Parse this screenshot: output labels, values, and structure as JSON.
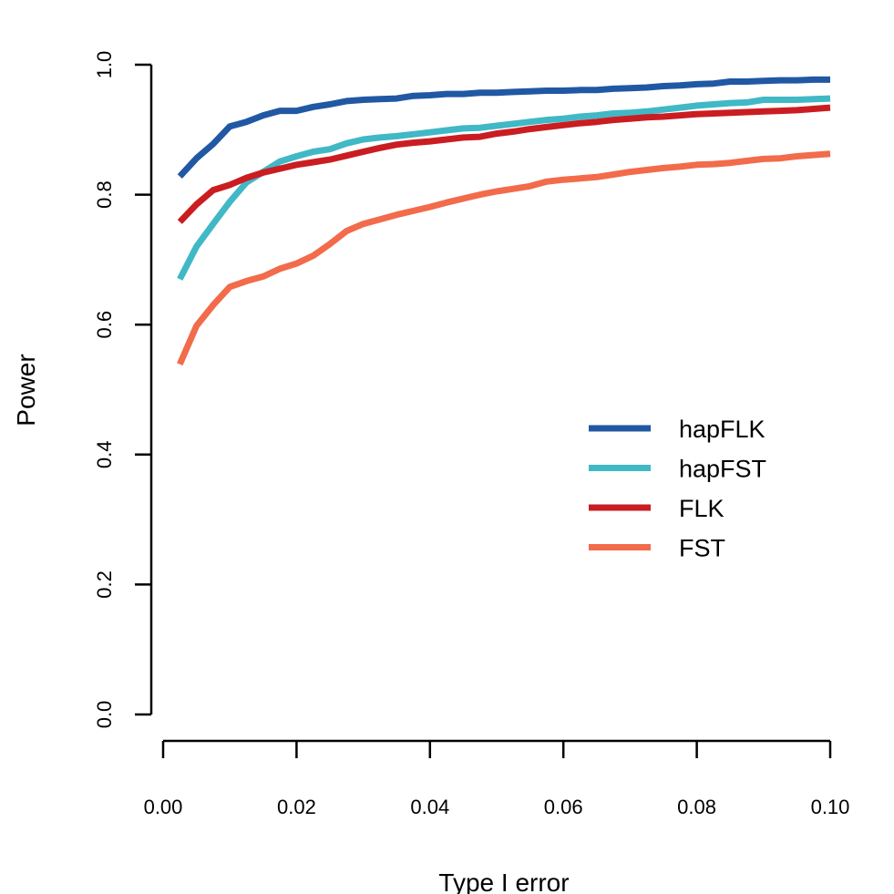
{
  "chart_data": {
    "type": "line",
    "title": "",
    "xlabel": "Type I error",
    "ylabel": "Power",
    "xlim": [
      0,
      0.1
    ],
    "ylim": [
      0,
      1
    ],
    "x_ticks": [
      "0.00",
      "0.02",
      "0.04",
      "0.06",
      "0.08",
      "0.10"
    ],
    "y_ticks": [
      "0.0",
      "0.2",
      "0.4",
      "0.6",
      "0.8",
      "1.0"
    ],
    "x_tick_values": [
      0,
      0.02,
      0.04,
      0.06,
      0.08,
      0.1
    ],
    "y_tick_values": [
      0,
      0.2,
      0.4,
      0.6,
      0.8,
      1.0
    ],
    "grid": false,
    "legend_position": "right-middle",
    "x": [
      0.0025,
      0.005,
      0.0075,
      0.01,
      0.0125,
      0.015,
      0.0175,
      0.02,
      0.0225,
      0.025,
      0.0275,
      0.03,
      0.0325,
      0.035,
      0.0375,
      0.04,
      0.0425,
      0.045,
      0.0475,
      0.05,
      0.0525,
      0.055,
      0.0575,
      0.06,
      0.0625,
      0.065,
      0.0675,
      0.07,
      0.0725,
      0.075,
      0.0775,
      0.08,
      0.0825,
      0.085,
      0.0875,
      0.09,
      0.0925,
      0.095,
      0.0975,
      0.1
    ],
    "series": [
      {
        "name": "hapFLK",
        "color": "#2158a3",
        "values": [
          0.828,
          0.856,
          0.878,
          0.905,
          0.912,
          0.922,
          0.929,
          0.929,
          0.935,
          0.939,
          0.944,
          0.946,
          0.947,
          0.948,
          0.952,
          0.953,
          0.955,
          0.955,
          0.957,
          0.957,
          0.958,
          0.959,
          0.96,
          0.96,
          0.961,
          0.961,
          0.963,
          0.964,
          0.965,
          0.967,
          0.968,
          0.97,
          0.971,
          0.974,
          0.974,
          0.975,
          0.976,
          0.976,
          0.977,
          0.977
        ]
      },
      {
        "name": "hapFST",
        "color": "#40b8c6",
        "values": [
          0.67,
          0.72,
          0.755,
          0.789,
          0.819,
          0.835,
          0.851,
          0.859,
          0.866,
          0.87,
          0.879,
          0.885,
          0.888,
          0.89,
          0.893,
          0.896,
          0.899,
          0.902,
          0.903,
          0.906,
          0.909,
          0.912,
          0.915,
          0.917,
          0.92,
          0.922,
          0.925,
          0.926,
          0.928,
          0.931,
          0.934,
          0.937,
          0.939,
          0.941,
          0.942,
          0.946,
          0.946,
          0.946,
          0.947,
          0.948
        ]
      },
      {
        "name": "FLK",
        "color": "#ca1d22",
        "values": [
          0.758,
          0.785,
          0.807,
          0.815,
          0.826,
          0.834,
          0.84,
          0.846,
          0.85,
          0.854,
          0.86,
          0.866,
          0.872,
          0.877,
          0.88,
          0.882,
          0.885,
          0.888,
          0.889,
          0.894,
          0.897,
          0.901,
          0.904,
          0.907,
          0.91,
          0.912,
          0.915,
          0.917,
          0.919,
          0.92,
          0.922,
          0.924,
          0.925,
          0.926,
          0.927,
          0.928,
          0.929,
          0.93,
          0.932,
          0.934
        ]
      },
      {
        "name": "FST",
        "color": "#f26b4b",
        "values": [
          0.539,
          0.598,
          0.63,
          0.658,
          0.667,
          0.674,
          0.686,
          0.694,
          0.706,
          0.724,
          0.744,
          0.755,
          0.762,
          0.769,
          0.775,
          0.781,
          0.788,
          0.794,
          0.8,
          0.805,
          0.809,
          0.813,
          0.82,
          0.823,
          0.825,
          0.827,
          0.831,
          0.835,
          0.838,
          0.841,
          0.843,
          0.846,
          0.847,
          0.849,
          0.852,
          0.855,
          0.856,
          0.859,
          0.861,
          0.863
        ]
      }
    ]
  }
}
